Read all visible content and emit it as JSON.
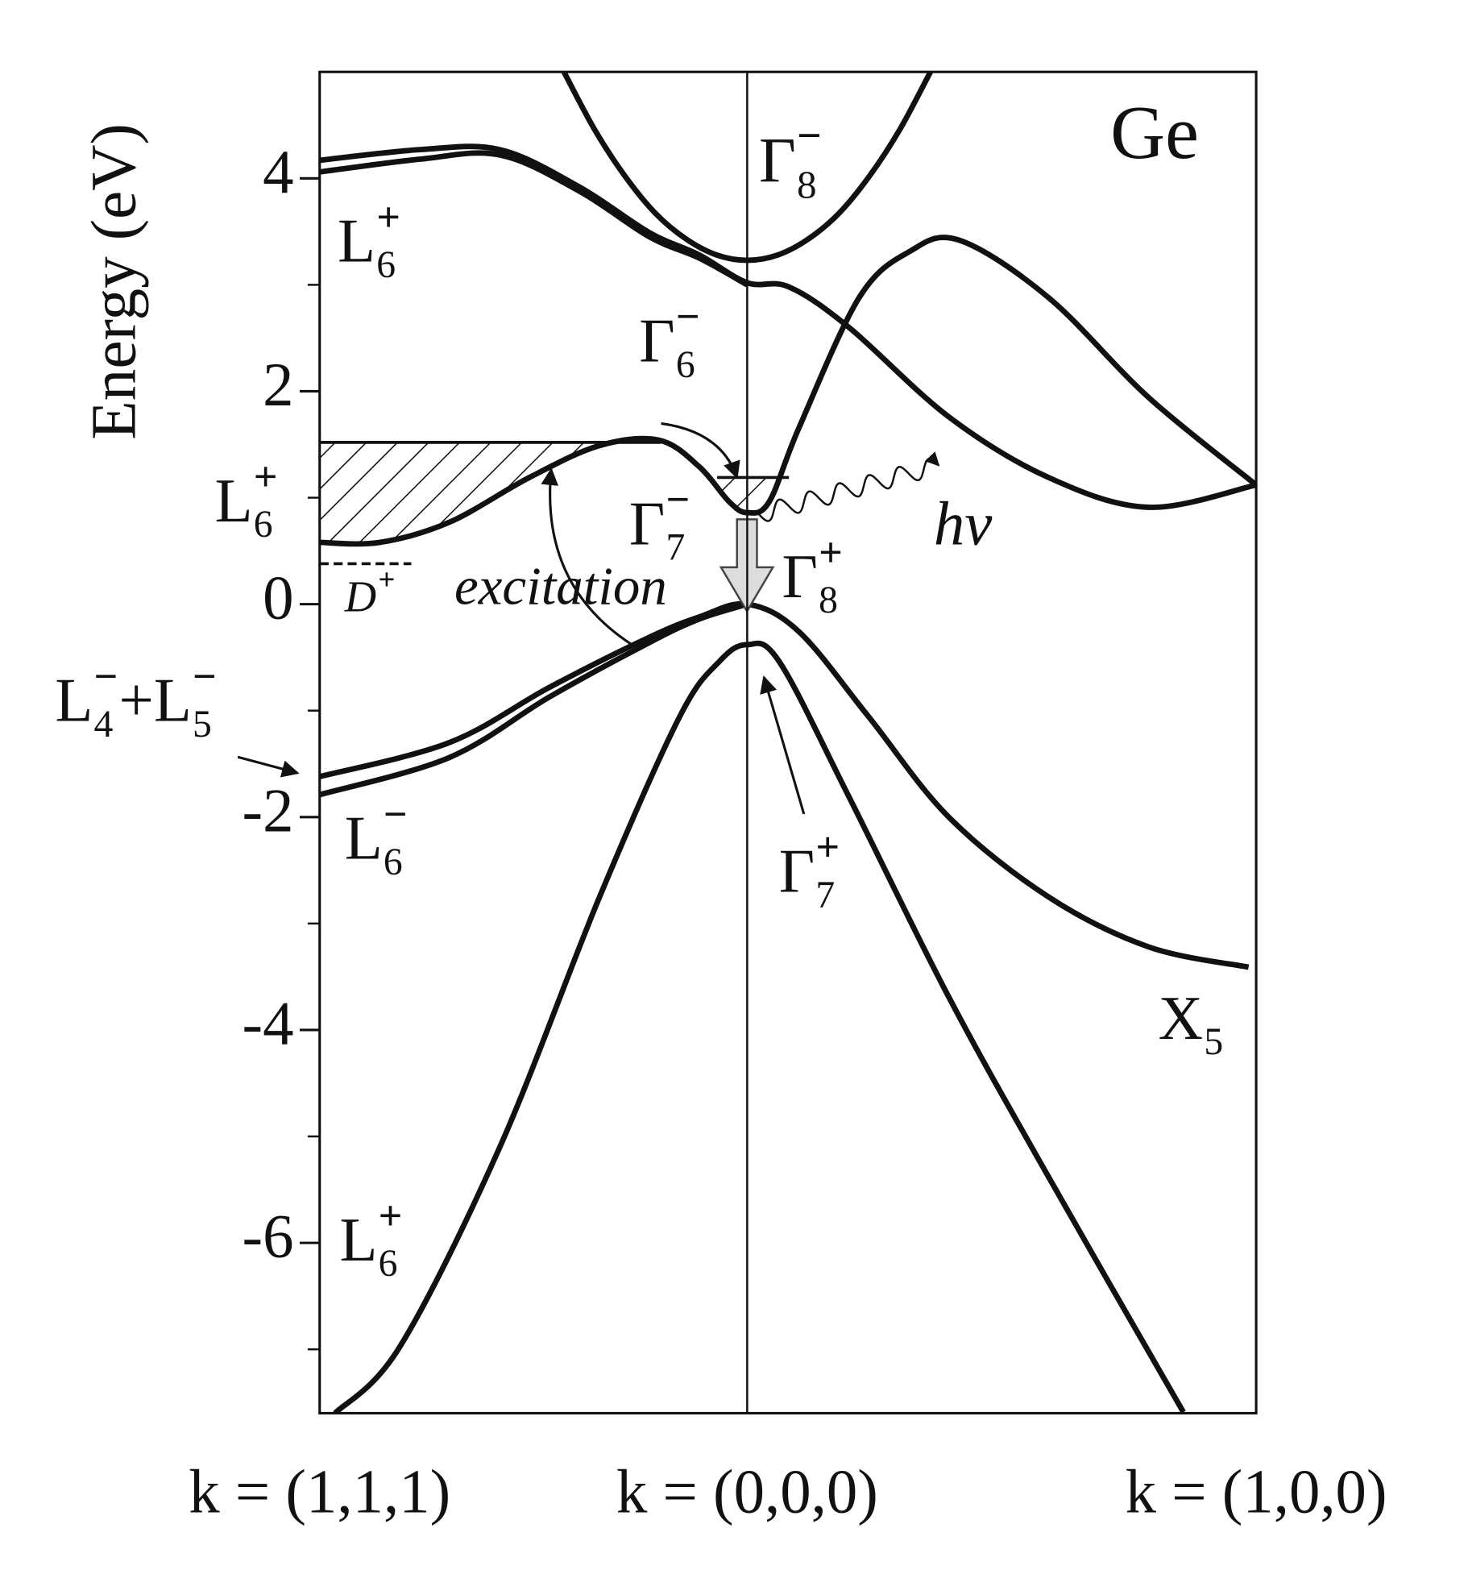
{
  "chart_data": {
    "type": "line",
    "ylabel": "Energy (eV)",
    "xlim": [
      -0.84,
      1
    ],
    "xticks": [
      {
        "value": -0.84,
        "label": "k = (1,1,1)"
      },
      {
        "value": 0,
        "label": "k = (0,0,0)"
      },
      {
        "value": 1,
        "label": "k = (1,0,0)"
      }
    ],
    "ylim": [
      -7.6,
      5
    ],
    "yticks": [
      -6,
      -4,
      -2,
      0,
      2,
      4
    ],
    "yminorticks": [
      -7,
      -5,
      -3,
      -1,
      1,
      3
    ],
    "color": "#111111",
    "series": [
      {
        "x": [
          -0.36,
          -0.3,
          -0.24,
          -0.18,
          -0.12,
          -0.06,
          0,
          0.06,
          0.12,
          0.18,
          0.24,
          0.3,
          0.36
        ],
        "values": [
          5.0,
          4.46,
          4.02,
          3.67,
          3.43,
          3.28,
          3.23,
          3.28,
          3.43,
          3.67,
          4.02,
          4.46,
          5.0
        ]
      },
      {
        "x": [
          -0.84,
          -0.643,
          -0.486,
          -0.33,
          -0.192,
          -0.094,
          0,
          0.082,
          0.2,
          0.396,
          0.592,
          0.789,
          1
        ],
        "values": [
          4.17,
          4.27,
          4.27,
          3.92,
          3.49,
          3.28,
          3.02,
          2.98,
          2.6,
          1.76,
          1.19,
          0.91,
          1.12
        ]
      },
      {
        "x": [
          -0.84,
          -0.643,
          -0.486,
          -0.33,
          -0.192,
          -0.094,
          0
        ],
        "values": [
          4.06,
          4.18,
          4.22,
          3.88,
          3.45,
          3.25,
          3.0
        ]
      },
      {
        "x": [
          -0.84,
          -0.722,
          -0.585,
          -0.428,
          -0.29,
          -0.173,
          -0.094,
          -0.035,
          0,
          0.043,
          0.102,
          0.22,
          0.318,
          0.416,
          0.592,
          0.789,
          1
        ],
        "values": [
          0.58,
          0.58,
          0.77,
          1.19,
          1.49,
          1.54,
          1.29,
          0.96,
          0.86,
          0.96,
          1.66,
          2.88,
          3.31,
          3.42,
          2.88,
          1.94,
          1.12
        ]
      },
      {
        "x": [
          -0.84,
          -0.585,
          -0.388,
          -0.192,
          -0.094,
          0,
          0.102,
          0.239,
          0.396,
          0.592,
          0.789,
          0.985
        ],
        "values": [
          -1.62,
          -1.3,
          -0.78,
          -0.31,
          -0.12,
          0,
          -0.26,
          -1.06,
          -2.0,
          -2.75,
          -3.22,
          -3.41
        ]
      },
      {
        "x": [
          -0.84,
          -0.585,
          -0.388,
          -0.192,
          -0.094,
          0
        ],
        "values": [
          -1.79,
          -1.44,
          -0.87,
          -0.36,
          -0.14,
          0
        ]
      },
      {
        "x": [
          -0.81,
          -0.683,
          -0.486,
          -0.29,
          -0.133,
          -0.055,
          0,
          0.063,
          0.2,
          0.396,
          0.592,
          0.857
        ],
        "values": [
          -7.6,
          -6.98,
          -5.1,
          -2.75,
          -1.06,
          -0.54,
          -0.38,
          -0.54,
          -1.81,
          -3.69,
          -5.38,
          -7.59
        ]
      }
    ],
    "filled_levels": [
      {
        "level": 1.52,
        "x": [
          -0.84,
          -0.17
        ]
      },
      {
        "level": 1.19,
        "x": [
          -0.059,
          0.082
        ]
      }
    ],
    "donor_level": {
      "level": 0.38,
      "x": [
        -0.84,
        -0.66
      ]
    },
    "annotations": [
      {
        "parts": [
          {
            "text": "Ge"
          }
        ]
      },
      {
        "parts": [
          {
            "text": "Γ",
            "sub": "8",
            "sup": "−"
          }
        ]
      },
      {
        "parts": [
          {
            "text": "L",
            "sub": "6",
            "sup": "+"
          }
        ]
      },
      {
        "parts": [
          {
            "text": "Γ",
            "sub": "6",
            "sup": "−"
          }
        ]
      },
      {
        "parts": [
          {
            "text": "L",
            "sub": "6",
            "sup": "+"
          }
        ]
      },
      {
        "parts": [
          {
            "text": "Γ",
            "sub": "7",
            "sup": "−"
          }
        ]
      },
      {
        "parts": [
          {
            "text": "Γ",
            "sub": "8",
            "sup": "+"
          }
        ]
      },
      {
        "parts": [
          {
            "text": "D",
            "sup": "+"
          }
        ]
      },
      {
        "parts": [
          {
            "text": "excitation"
          }
        ]
      },
      {
        "parts": [
          {
            "text": "hν"
          }
        ]
      },
      {
        "parts": [
          {
            "text": "L",
            "sub": "4",
            "sup": "−"
          },
          {
            "text": "+L",
            "sub": "5",
            "sup": "−"
          }
        ]
      },
      {
        "parts": [
          {
            "text": "L",
            "sub": "6",
            "sup": "−"
          }
        ]
      },
      {
        "parts": [
          {
            "text": "Γ",
            "sub": "7",
            "sup": "+"
          }
        ]
      },
      {
        "parts": [
          {
            "text": "X",
            "sub": "5"
          }
        ]
      },
      {
        "parts": [
          {
            "text": "L",
            "sub": "6",
            "sup": "+"
          }
        ]
      }
    ]
  }
}
